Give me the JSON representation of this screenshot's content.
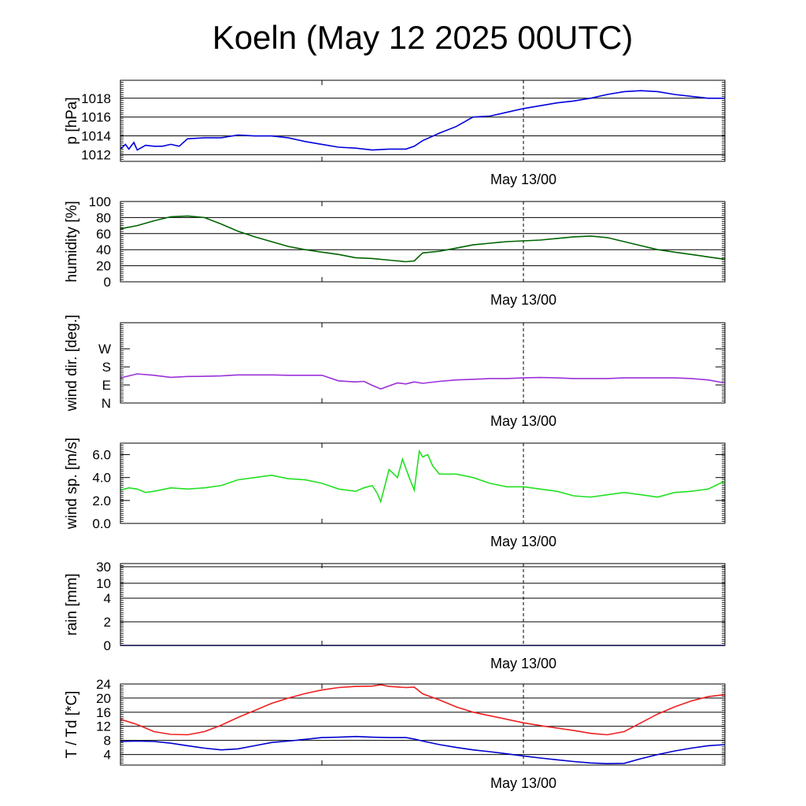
{
  "title": "Koeln (May 12 2025 00UTC)",
  "colors": {
    "pressure": "#0000dd",
    "humidity": "#006400",
    "wind_dir": "#9b30d9",
    "wind_speed": "#22e022",
    "temperature": "#ee2020",
    "dewpoint": "#0000cc",
    "grid": "#000000"
  },
  "chart_data": [
    {
      "type": "line",
      "ylabel": "p [hPa]",
      "xtick_label": "May 13/00",
      "x_range_hours": [
        0,
        36
      ],
      "ylim": [
        1011.3,
        1019.9
      ],
      "yticks": [
        1012,
        1014,
        1016,
        1018
      ],
      "ytick_labels": [
        "1012",
        "1014",
        "1016",
        "1018"
      ],
      "grid": true,
      "series": [
        {
          "x": [
            0,
            0.3,
            0.5,
            0.8,
            1,
            1.5,
            2,
            2.5,
            3,
            3.5,
            4,
            5,
            6,
            7,
            8,
            9,
            10,
            11,
            12,
            13,
            14,
            15,
            16,
            17,
            17.5,
            18,
            19,
            20,
            20.5,
            21,
            22,
            23,
            24,
            25,
            26,
            27,
            28,
            29,
            30,
            31,
            32,
            33,
            34,
            35,
            36
          ],
          "y": [
            1012.6,
            1013.1,
            1012.6,
            1013.3,
            1012.5,
            1013.0,
            1012.9,
            1012.9,
            1013.1,
            1012.9,
            1013.7,
            1013.8,
            1013.8,
            1014.1,
            1014.0,
            1014.0,
            1013.8,
            1013.4,
            1013.1,
            1012.8,
            1012.7,
            1012.5,
            1012.6,
            1012.6,
            1012.9,
            1013.5,
            1014.3,
            1015.0,
            1015.5,
            1016.0,
            1016.1,
            1016.5,
            1016.9,
            1017.2,
            1017.5,
            1017.7,
            1018.0,
            1018.4,
            1018.7,
            1018.8,
            1018.7,
            1018.4,
            1018.2,
            1018.0,
            1018.0
          ]
        }
      ]
    },
    {
      "type": "line",
      "ylabel": "humidity [%]",
      "xtick_label": "May 13/00",
      "x_range_hours": [
        0,
        36
      ],
      "ylim": [
        0,
        100
      ],
      "yticks": [
        0,
        20,
        40,
        60,
        80,
        100
      ],
      "ytick_labels": [
        "0",
        "20",
        "40",
        "60",
        "80",
        "100"
      ],
      "grid": true,
      "series": [
        {
          "x": [
            0,
            1,
            2,
            3,
            4,
            5,
            6,
            7,
            8,
            9,
            10,
            11,
            12,
            13,
            14,
            15,
            16,
            17,
            17.5,
            18,
            19,
            20,
            21,
            22,
            23,
            24,
            25,
            26,
            27,
            28,
            29,
            30,
            31,
            32,
            33,
            34,
            35,
            36
          ],
          "y": [
            66,
            70,
            76,
            81,
            82,
            80,
            72,
            63,
            56,
            50,
            44,
            40,
            37,
            34,
            30,
            29,
            27,
            25,
            26,
            36,
            38,
            42,
            46,
            48,
            50,
            51,
            52,
            54,
            56,
            57,
            55,
            50,
            45,
            40,
            37,
            34,
            31,
            28
          ]
        }
      ]
    },
    {
      "type": "line",
      "ylabel": "wind dir. [deg.]",
      "xtick_label": "May 13/00",
      "x_range_hours": [
        0,
        36
      ],
      "ylim": [
        0,
        400
      ],
      "yticks": [
        0,
        90,
        180,
        270
      ],
      "ytick_labels": [
        "N",
        "E",
        "S",
        "W"
      ],
      "grid": false,
      "series": [
        {
          "x": [
            0,
            1,
            2,
            3,
            4,
            5,
            6,
            7,
            8,
            9,
            10,
            11,
            12,
            13,
            14,
            14.5,
            15,
            15.5,
            16,
            16.5,
            17,
            17.5,
            18,
            19,
            20,
            21,
            22,
            23,
            24,
            25,
            26,
            27,
            28,
            29,
            30,
            31,
            32,
            33,
            34,
            35,
            36
          ],
          "y": [
            125,
            145,
            138,
            128,
            132,
            133,
            135,
            140,
            140,
            140,
            138,
            138,
            138,
            110,
            105,
            108,
            88,
            70,
            85,
            100,
            95,
            105,
            98,
            108,
            115,
            118,
            122,
            122,
            125,
            127,
            125,
            122,
            122,
            122,
            125,
            125,
            125,
            125,
            122,
            115,
            100
          ]
        }
      ]
    },
    {
      "type": "line",
      "ylabel": "wind sp. [m/s]",
      "xtick_label": "May 13/00",
      "x_range_hours": [
        0,
        36
      ],
      "ylim": [
        0,
        7
      ],
      "yticks": [
        0,
        2,
        4,
        6
      ],
      "ytick_labels": [
        "0.0",
        "2.0",
        "4.0",
        "6.0"
      ],
      "grid": false,
      "series": [
        {
          "x": [
            0,
            0.5,
            1,
            1.5,
            2,
            3,
            4,
            5,
            6,
            7,
            8,
            9,
            10,
            11,
            12,
            13,
            14,
            14.5,
            15,
            15.3,
            15.5,
            16,
            16.5,
            16.8,
            17.2,
            17.5,
            17.8,
            18,
            18.3,
            18.6,
            19,
            20,
            21,
            22,
            23,
            24,
            25,
            26,
            27,
            28,
            29,
            30,
            31,
            32,
            33,
            34,
            35,
            36
          ],
          "y": [
            2.9,
            3.1,
            3.0,
            2.7,
            2.8,
            3.1,
            3.0,
            3.1,
            3.3,
            3.8,
            4.0,
            4.2,
            3.9,
            3.8,
            3.5,
            3.0,
            2.8,
            3.1,
            3.3,
            2.6,
            1.9,
            4.7,
            4.0,
            5.6,
            4.0,
            2.9,
            6.3,
            5.8,
            6.0,
            5.0,
            4.3,
            4.3,
            4.0,
            3.5,
            3.2,
            3.2,
            3.0,
            2.8,
            2.4,
            2.3,
            2.5,
            2.7,
            2.5,
            2.3,
            2.7,
            2.8,
            3.0,
            3.7
          ]
        }
      ]
    },
    {
      "type": "line",
      "ylabel": "rain [mm]",
      "xtick_label": "May 13/00",
      "x_range_hours": [
        0,
        36
      ],
      "ylim": [
        0,
        30
      ],
      "yticks": [
        0,
        2,
        4,
        10,
        30
      ],
      "ytick_labels": [
        "0",
        "2",
        "4",
        "10",
        "30"
      ],
      "grid": true,
      "series": [
        {
          "x": [
            0,
            36
          ],
          "y": [
            0,
            0
          ]
        }
      ]
    },
    {
      "type": "line",
      "ylabel": "T / Td [*C]",
      "xtick_label": "May 13/00",
      "x_range_hours": [
        0,
        36
      ],
      "ylim": [
        1,
        24
      ],
      "yticks": [
        4,
        8,
        12,
        16,
        20,
        24
      ],
      "ytick_labels": [
        "4",
        "8",
        "12",
        "16",
        "20",
        "24"
      ],
      "grid": true,
      "series": [
        {
          "x": [
            0,
            1,
            2,
            3,
            4,
            5,
            6,
            7,
            8,
            9,
            10,
            11,
            12,
            13,
            14,
            15,
            15.5,
            16,
            17,
            17.5,
            18,
            19,
            20,
            21,
            22,
            23,
            24,
            25,
            26,
            27,
            28,
            29,
            30,
            31,
            32,
            33,
            34,
            35,
            36
          ],
          "y": [
            14.0,
            12.5,
            10.5,
            9.7,
            9.6,
            10.5,
            12.3,
            14.5,
            16.5,
            18.5,
            20.0,
            21.3,
            22.3,
            23.0,
            23.3,
            23.4,
            23.8,
            23.3,
            23.0,
            23.1,
            21.2,
            19.5,
            17.5,
            16.0,
            15.0,
            14.0,
            13.0,
            12.2,
            11.5,
            10.8,
            10.0,
            9.6,
            10.5,
            13.0,
            15.5,
            17.5,
            19.2,
            20.4,
            21.0
          ]
        },
        {
          "x": [
            0,
            1,
            2,
            3,
            4,
            5,
            6,
            7,
            8,
            9,
            10,
            11,
            12,
            13,
            14,
            15,
            16,
            17,
            17.5,
            18,
            19,
            20,
            21,
            22,
            23,
            24,
            25,
            26,
            27,
            28,
            29,
            30,
            31,
            32,
            33,
            34,
            35,
            36
          ],
          "y": [
            7.7,
            7.8,
            7.7,
            7.2,
            6.5,
            5.8,
            5.3,
            5.6,
            6.5,
            7.4,
            7.8,
            8.3,
            8.8,
            8.9,
            9.1,
            8.9,
            8.8,
            8.8,
            8.4,
            7.8,
            6.8,
            6.0,
            5.3,
            4.8,
            4.2,
            3.6,
            3.0,
            2.5,
            2.0,
            1.6,
            1.4,
            1.5,
            2.8,
            4.0,
            5.0,
            5.8,
            6.5,
            6.8
          ]
        }
      ]
    }
  ]
}
